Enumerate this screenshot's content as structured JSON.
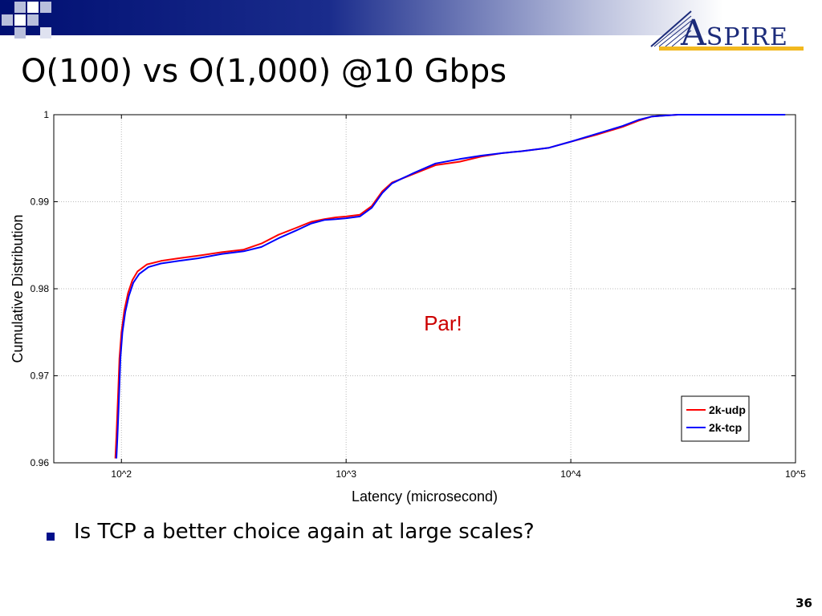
{
  "slide": {
    "title": "O(100) vs O(1,000) @10 Gbps",
    "bullet": "Is TCP a better choice again at large scales?",
    "page_number": "36"
  },
  "logo": {
    "first_letter": "A",
    "rest": "SPIRE"
  },
  "colors": {
    "accent": "#000f72",
    "logo_text": "#1c2b7a",
    "logo_line": "#f2b81e",
    "annotation": "#cc0000"
  },
  "chart_data": {
    "type": "line",
    "x_scale": "log",
    "xlim": [
      50,
      100000
    ],
    "ylim": [
      0.96,
      1.0
    ],
    "xlabel": "Latency (microsecond)",
    "ylabel": "Cumulative Distribution",
    "x_ticks": [
      {
        "value": 100,
        "label": "10^2"
      },
      {
        "value": 1000,
        "label": "10^3"
      },
      {
        "value": 10000,
        "label": "10^4"
      },
      {
        "value": 100000,
        "label": "10^5"
      }
    ],
    "y_ticks": [
      {
        "value": 0.96,
        "label": "0.96"
      },
      {
        "value": 0.97,
        "label": "0.97"
      },
      {
        "value": 0.98,
        "label": "0.98"
      },
      {
        "value": 0.99,
        "label": "0.99"
      },
      {
        "value": 1.0,
        "label": "1"
      }
    ],
    "grid": true,
    "legend_position": "bottom-right",
    "annotation": "Par!",
    "series": [
      {
        "name": "2k-udp",
        "color": "#ff0000",
        "x": [
          94,
          95,
          96,
          97,
          98,
          100,
          103,
          107,
          112,
          118,
          130,
          150,
          180,
          220,
          280,
          350,
          420,
          500,
          600,
          700,
          800,
          900,
          1000,
          1150,
          1300,
          1450,
          1600,
          1750,
          2000,
          2500,
          3200,
          4000,
          5000,
          6000,
          8000,
          10000,
          13000,
          17000,
          20000,
          23000,
          26000,
          30000,
          40000,
          50000
        ],
        "y": [
          0.9605,
          0.963,
          0.966,
          0.969,
          0.972,
          0.975,
          0.9775,
          0.9795,
          0.981,
          0.982,
          0.9828,
          0.9832,
          0.9835,
          0.9838,
          0.9842,
          0.9845,
          0.9852,
          0.9862,
          0.987,
          0.9877,
          0.988,
          0.9882,
          0.9883,
          0.9885,
          0.9895,
          0.9912,
          0.9922,
          0.9926,
          0.9932,
          0.9942,
          0.9946,
          0.9952,
          0.9956,
          0.9958,
          0.9962,
          0.9969,
          0.9977,
          0.9986,
          0.9993,
          0.9998,
          0.9999,
          1.0,
          1.0,
          1.0
        ]
      },
      {
        "name": "2k-tcp",
        "color": "#0000ff",
        "x": [
          95,
          96,
          97,
          98,
          99,
          101,
          104,
          108,
          113,
          120,
          132,
          150,
          180,
          220,
          280,
          350,
          420,
          500,
          600,
          700,
          800,
          900,
          1000,
          1150,
          1300,
          1450,
          1600,
          1750,
          2000,
          2500,
          3200,
          4000,
          5000,
          6000,
          8000,
          10000,
          13000,
          17000,
          20000,
          23000,
          26000,
          30000,
          40000,
          50000,
          90000
        ],
        "y": [
          0.9605,
          0.963,
          0.966,
          0.969,
          0.972,
          0.975,
          0.9773,
          0.9792,
          0.9807,
          0.9817,
          0.9825,
          0.9829,
          0.9832,
          0.9835,
          0.984,
          0.9843,
          0.9848,
          0.9858,
          0.9867,
          0.9875,
          0.9879,
          0.988,
          0.9881,
          0.9883,
          0.9893,
          0.991,
          0.9921,
          0.9926,
          0.9933,
          0.9944,
          0.9949,
          0.9953,
          0.9956,
          0.9958,
          0.9962,
          0.9969,
          0.9978,
          0.9987,
          0.9994,
          0.9998,
          0.9999,
          1.0,
          1.0,
          1.0,
          1.0
        ]
      }
    ]
  }
}
